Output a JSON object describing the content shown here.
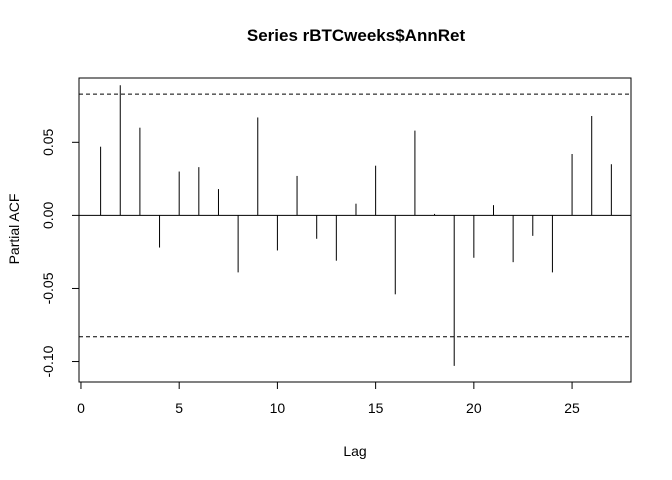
{
  "chart_data": {
    "type": "bar",
    "title": "Series  rBTCweeks$AnnRet",
    "xlabel": "Lag",
    "ylabel": "Partial ACF",
    "xlim": [
      -0.1,
      28
    ],
    "ylim": [
      -0.114,
      0.094
    ],
    "xticks": [
      0,
      5,
      10,
      15,
      20,
      25
    ],
    "yticks": [
      -0.1,
      -0.05,
      0.0,
      0.05
    ],
    "ytick_labels": [
      "-0.10",
      "-0.05",
      "0.00",
      "0.05"
    ],
    "zero_line": 0,
    "confidence_bound": 0.083,
    "confidence_bound_style": "dashed",
    "grid": false,
    "legend": "none",
    "lags": [
      1,
      2,
      3,
      4,
      5,
      6,
      7,
      8,
      9,
      10,
      11,
      12,
      13,
      14,
      15,
      16,
      17,
      18,
      19,
      20,
      21,
      22,
      23,
      24,
      25,
      26,
      27
    ],
    "values": [
      0.047,
      0.089,
      0.06,
      -0.022,
      0.03,
      0.033,
      0.018,
      -0.039,
      0.067,
      -0.024,
      0.027,
      -0.016,
      -0.031,
      0.008,
      0.034,
      -0.054,
      0.058,
      0.001,
      -0.103,
      -0.029,
      0.007,
      -0.032,
      -0.014,
      -0.039,
      0.042,
      0.068,
      0.035
    ]
  }
}
